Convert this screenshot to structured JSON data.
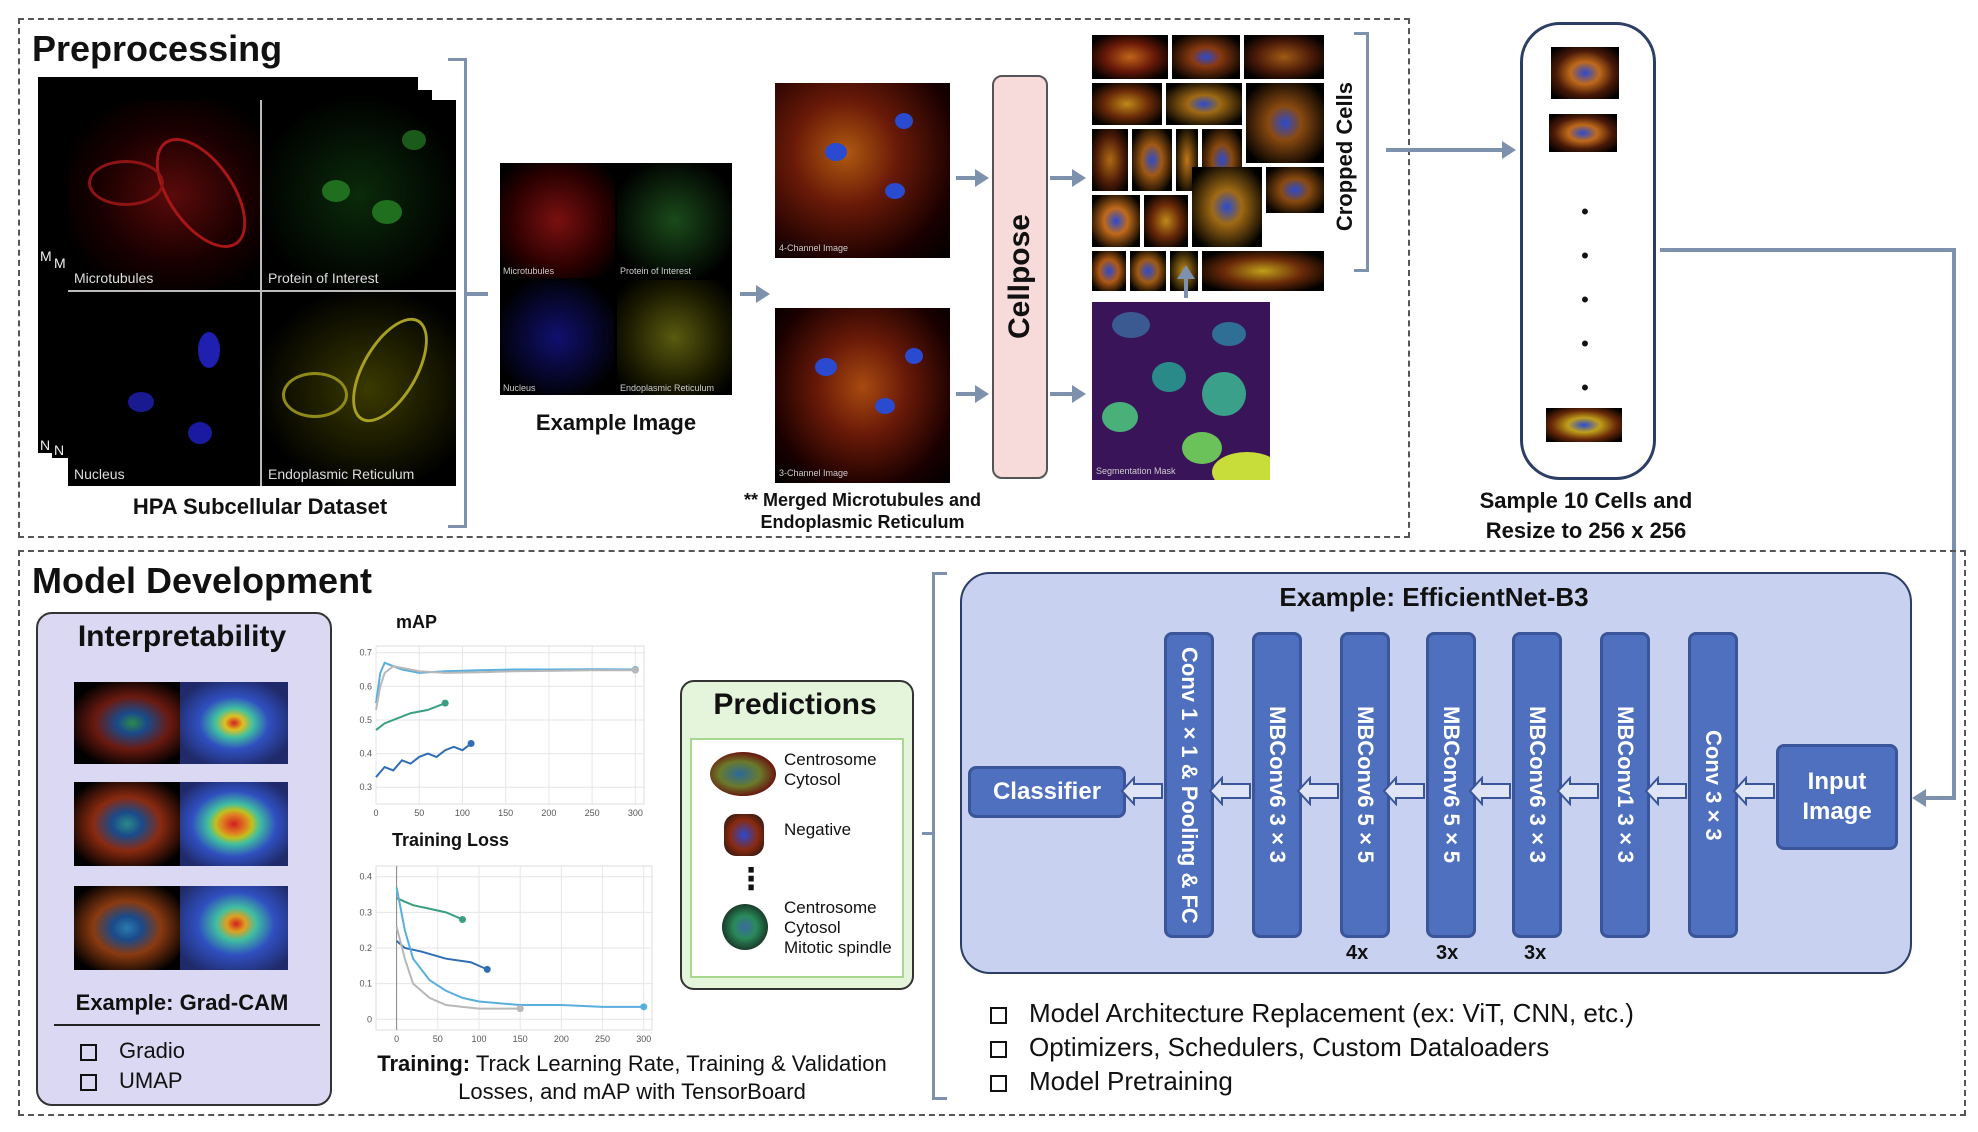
{
  "preprocessing": {
    "title": "Preprocessing",
    "dataset_label": "HPA Subcellular Dataset",
    "channels": [
      "Microtubules",
      "Protein of Interest",
      "Nucleus",
      "Endoplasmic Reticulum"
    ],
    "stack_labels": [
      "M",
      "M",
      "N",
      "N"
    ],
    "example_label": "Example Image",
    "example_channels": [
      "Microtubules",
      "Protein of Interest",
      "Nucleus",
      "Endoplasmic Reticulum"
    ],
    "four_channel_label": "4-Channel Image",
    "three_channel_label": "3-Channel Image",
    "merged_note_line1": "** Merged Microtubules and",
    "merged_note_line2": "Endoplasmic Reticulum",
    "cellpose_label": "Cellpose",
    "seg_mask_label": "Segmentation Mask",
    "cropped_label": "Cropped Cells",
    "sample_label_line1": "Sample 10 Cells and",
    "sample_label_line2": "Resize to 256 x 256",
    "dots": "•"
  },
  "model_dev": {
    "title": "Model Development",
    "interpretability": {
      "title": "Interpretability",
      "example_label": "Example: Grad-CAM",
      "items": [
        "Gradio",
        "UMAP"
      ]
    },
    "map_chart_title": "mAP",
    "loss_chart_title": "Training Loss",
    "training_bold": "Training:",
    "training_line1": " Track Learning Rate, Training & Validation",
    "training_line2": "Losses, and mAP with TensorBoard",
    "predictions": {
      "title": "Predictions",
      "entries": [
        [
          "Centrosome",
          "Cytosol"
        ],
        [
          "Negative"
        ],
        [
          "Centrosome",
          "Cytosol",
          "Mitotic spindle"
        ]
      ],
      "dots": "⋮"
    },
    "architecture": {
      "title": "Example: EfficientNet-B3",
      "classifier": "Classifier",
      "input": [
        "Input",
        "Image"
      ],
      "blocks": [
        "Conv 1×1 & Pooling & FC",
        "MBConv6   3×3",
        "MBConv6   5×5",
        "MBConv6   5×5",
        "MBConv6   3×3",
        "MBConv1   3×3",
        "Conv   3×3"
      ],
      "repeats": [
        "4x",
        "3x",
        "3x"
      ]
    },
    "bullets": [
      "Model Architecture Replacement (ex: ViT, CNN, etc.)",
      "Optimizers, Schedulers, Custom Dataloaders",
      "Model Pretraining"
    ]
  },
  "chart_data": [
    {
      "type": "line",
      "title": "mAP",
      "xlabel": "",
      "ylabel": "",
      "xlim": [
        0,
        310
      ],
      "ylim": [
        0.25,
        0.72
      ],
      "x_ticks": [
        0,
        50,
        100,
        150,
        200,
        250,
        300
      ],
      "y_ticks": [
        0.3,
        0.4,
        0.5,
        0.6,
        0.7
      ],
      "grid": true,
      "series": [
        {
          "color": "#5aaede",
          "x": [
            0,
            5,
            10,
            20,
            30,
            50,
            80,
            120,
            160,
            200,
            250,
            300
          ],
          "y": [
            0.55,
            0.64,
            0.67,
            0.66,
            0.65,
            0.64,
            0.645,
            0.648,
            0.65,
            0.65,
            0.651,
            0.65
          ]
        },
        {
          "color": "#b8b8b8",
          "x": [
            0,
            5,
            10,
            20,
            30,
            50,
            80,
            120,
            160,
            200,
            250,
            300
          ],
          "y": [
            0.53,
            0.6,
            0.64,
            0.66,
            0.655,
            0.645,
            0.64,
            0.642,
            0.645,
            0.646,
            0.648,
            0.648
          ]
        },
        {
          "color": "#3a9f82",
          "x": [
            0,
            10,
            20,
            40,
            60,
            80
          ],
          "y": [
            0.47,
            0.49,
            0.5,
            0.52,
            0.53,
            0.55
          ]
        },
        {
          "color": "#2f6db5",
          "x": [
            0,
            10,
            20,
            30,
            40,
            50,
            60,
            70,
            80,
            90,
            100,
            110
          ],
          "y": [
            0.33,
            0.36,
            0.35,
            0.38,
            0.37,
            0.39,
            0.4,
            0.39,
            0.41,
            0.42,
            0.41,
            0.43
          ]
        }
      ]
    },
    {
      "type": "line",
      "title": "Training Loss",
      "xlabel": "",
      "ylabel": "",
      "xlim": [
        -25,
        310
      ],
      "ylim": [
        -0.03,
        0.43
      ],
      "x_ticks": [
        0,
        50,
        100,
        150,
        200,
        250,
        300
      ],
      "y_ticks": [
        0,
        0.1,
        0.2,
        0.3,
        0.4
      ],
      "grid": true,
      "series": [
        {
          "color": "#3a9f82",
          "x": [
            0,
            10,
            20,
            40,
            60,
            80
          ],
          "y": [
            0.34,
            0.33,
            0.32,
            0.31,
            0.3,
            0.28
          ]
        },
        {
          "color": "#2f6db5",
          "x": [
            0,
            10,
            30,
            60,
            90,
            110
          ],
          "y": [
            0.22,
            0.2,
            0.19,
            0.17,
            0.16,
            0.14
          ]
        },
        {
          "color": "#5aaede",
          "x": [
            0,
            10,
            20,
            40,
            60,
            80,
            100,
            150,
            200,
            250,
            300
          ],
          "y": [
            0.37,
            0.25,
            0.17,
            0.11,
            0.08,
            0.06,
            0.05,
            0.04,
            0.04,
            0.035,
            0.035
          ]
        },
        {
          "color": "#b8b8b8",
          "x": [
            0,
            10,
            20,
            40,
            60,
            80,
            100,
            150
          ],
          "y": [
            0.26,
            0.17,
            0.1,
            0.06,
            0.04,
            0.035,
            0.03,
            0.03
          ]
        }
      ]
    }
  ],
  "colors": {
    "arrow": "#7d91ad",
    "block_fill": "#4f6fbf",
    "arch_bg": "#c8d2f0",
    "interp_bg": "#dad8f2",
    "pred_bg": "#e4f5dc",
    "cellpose_bg": "#f7dada"
  }
}
